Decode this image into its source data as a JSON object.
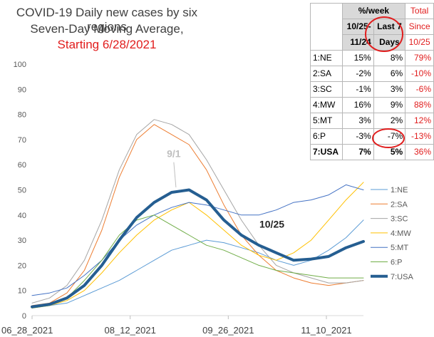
{
  "chart_data": {
    "type": "line",
    "title": [
      "COVID-19 Daily new cases by six regions",
      "Seven-Day Moving Average,",
      "Starting 6/28/2021"
    ],
    "ylim": [
      0,
      100
    ],
    "yticks": [
      0,
      10,
      20,
      30,
      40,
      50,
      60,
      70,
      80,
      90,
      100
    ],
    "x_tick_labels": [
      "06_28_2021",
      "08_12_2021",
      "09_26_2021",
      "11_10_2021"
    ],
    "x_tick_days": [
      0,
      45,
      90,
      135
    ],
    "x_range_days": [
      0,
      152
    ],
    "grid": false,
    "legend_position": "right",
    "x_days": [
      0,
      8,
      16,
      24,
      32,
      40,
      48,
      56,
      64,
      72,
      80,
      88,
      96,
      104,
      112,
      120,
      128,
      136,
      144,
      152
    ],
    "series": [
      {
        "name": "1:NE",
        "color": "#5b9bd5",
        "width": 1,
        "values": [
          3.5,
          4,
          5,
          8,
          11,
          14,
          18,
          22,
          26,
          28,
          30,
          29,
          27,
          25,
          22,
          20,
          22,
          26,
          31,
          38
        ]
      },
      {
        "name": "2:SA",
        "color": "#ed7d31",
        "width": 1,
        "values": [
          4,
          5,
          9,
          18,
          34,
          55,
          70,
          76,
          72,
          68,
          58,
          44,
          32,
          24,
          18,
          15,
          13,
          12,
          13,
          14
        ]
      },
      {
        "name": "3:SC",
        "color": "#a5a5a5",
        "width": 1,
        "values": [
          5,
          7,
          12,
          22,
          38,
          58,
          72,
          78,
          76,
          72,
          62,
          50,
          38,
          28,
          20,
          17,
          15,
          13,
          13,
          14
        ]
      },
      {
        "name": "4:MW",
        "color": "#ffc000",
        "width": 1,
        "values": [
          3,
          4,
          6,
          10,
          17,
          25,
          32,
          38,
          42,
          45,
          40,
          34,
          28,
          24,
          22,
          25,
          30,
          38,
          46,
          53
        ]
      },
      {
        "name": "5:MT",
        "color": "#4472c4",
        "width": 1,
        "values": [
          8,
          9,
          11,
          16,
          22,
          30,
          36,
          40,
          43,
          45,
          44,
          42,
          40,
          40,
          42,
          45,
          46,
          48,
          52,
          50
        ]
      },
      {
        "name": "6:P",
        "color": "#70ad47",
        "width": 1,
        "values": [
          3,
          4,
          7,
          14,
          22,
          32,
          38,
          40,
          36,
          32,
          28,
          26,
          23,
          20,
          18,
          17,
          16,
          15,
          15,
          15
        ]
      },
      {
        "name": "7:USA",
        "color": "#255e91",
        "width": 4,
        "values": [
          3.5,
          4.5,
          7,
          12,
          20,
          30,
          39,
          45,
          49,
          50,
          46,
          38,
          32,
          28,
          25,
          22,
          22.5,
          23.5,
          27,
          29.5
        ]
      }
    ],
    "annotations": [
      {
        "text": "9/1",
        "x_day": 65,
        "y": 63,
        "color": "#bfbfbf"
      },
      {
        "text": "10/25",
        "x_day": 110,
        "y": 35,
        "color": "#262626"
      }
    ],
    "table": {
      "header_week": "%/week",
      "header_total": "Total",
      "col1_sub": [
        "10/25-",
        "11/24"
      ],
      "col2_sub": [
        "Last 7",
        "Days"
      ],
      "col3_sub": [
        "Since",
        "10/25"
      ],
      "rows": [
        {
          "region": "1:NE",
          "month": "15%",
          "week": "8%",
          "total": "79%"
        },
        {
          "region": "2:SA",
          "month": "-2%",
          "week": "6%",
          "total": "-10%"
        },
        {
          "region": "3:SC",
          "month": "-1%",
          "week": "3%",
          "total": "-6%"
        },
        {
          "region": "4:MW",
          "month": "16%",
          "week": "9%",
          "total": "88%"
        },
        {
          "region": "5:MT",
          "month": "3%",
          "week": "2%",
          "total": "12%"
        },
        {
          "region": "6:P",
          "month": "-3%",
          "week": "-7%",
          "total": "-13%"
        },
        {
          "region": "7:USA",
          "month": "7%",
          "week": "5%",
          "total": "36%"
        }
      ]
    }
  }
}
